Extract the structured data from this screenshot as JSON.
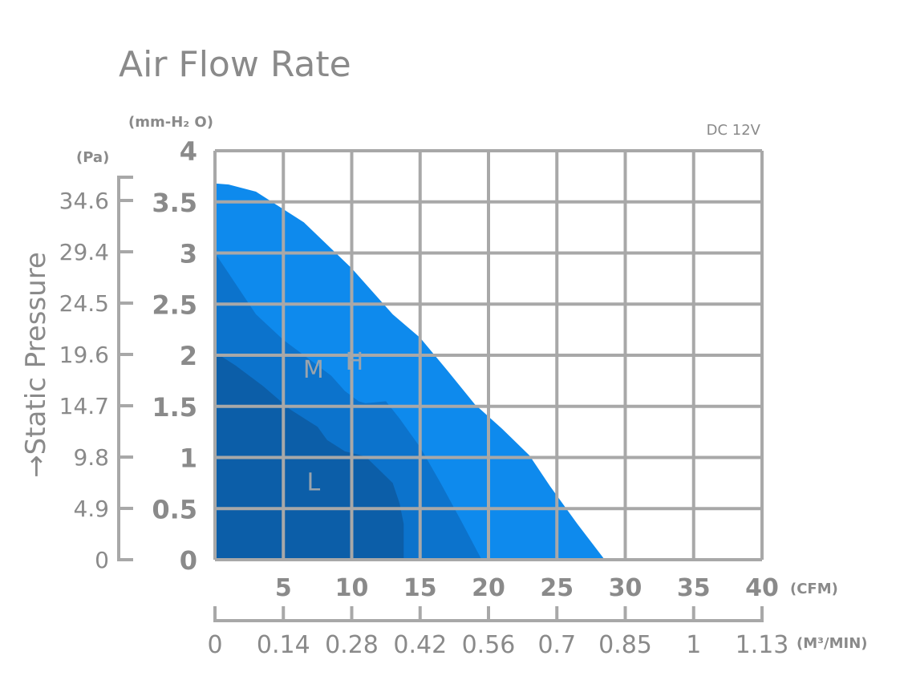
{
  "chart_data": {
    "type": "area",
    "title": "Air Flow Rate",
    "note": "DC 12V",
    "ylabel": "→Static Pressure",
    "y_unit_primary": "(mm-H₂ O)",
    "y_unit_secondary": "(Pa)",
    "x_unit_primary": "(CFM)",
    "x_unit_secondary": "(M³/MIN)",
    "xlim": [
      0,
      40
    ],
    "ylim": [
      0,
      4
    ],
    "grid": true,
    "x_ticks_cfm": [
      "5",
      "10",
      "15",
      "20",
      "25",
      "30",
      "35",
      "40"
    ],
    "x_ticks_m3min": [
      "0",
      "0.14",
      "0.28",
      "0.42",
      "0.56",
      "0.7",
      "0.85",
      "1",
      "1.13"
    ],
    "y_ticks_mmh2o": [
      "0",
      "0.5",
      "1",
      "1.5",
      "2",
      "2.5",
      "3",
      "3.5",
      "4"
    ],
    "y_ticks_pa": [
      "0",
      "4.9",
      "9.8",
      "14.7",
      "19.6",
      "24.5",
      "29.4",
      "34.6"
    ],
    "series": [
      {
        "name": "H",
        "color": "#0e8aed",
        "points": [
          [
            0,
            3.68
          ],
          [
            1,
            3.67
          ],
          [
            3,
            3.6
          ],
          [
            6.5,
            3.3
          ],
          [
            10,
            2.85
          ],
          [
            13,
            2.4
          ],
          [
            15,
            2.17
          ],
          [
            17,
            1.85
          ],
          [
            19,
            1.52
          ],
          [
            21,
            1.28
          ],
          [
            23,
            1.02
          ],
          [
            24.5,
            0.72
          ],
          [
            26.5,
            0.35
          ],
          [
            28.5,
            0
          ]
        ]
      },
      {
        "name": "M",
        "color": "#0c73cc",
        "points": [
          [
            0,
            3.0
          ],
          [
            1,
            2.8
          ],
          [
            3,
            2.4
          ],
          [
            5,
            2.15
          ],
          [
            7,
            1.95
          ],
          [
            8.5,
            1.8
          ],
          [
            9.5,
            1.65
          ],
          [
            10.5,
            1.55
          ],
          [
            11,
            1.53
          ],
          [
            12.5,
            1.55
          ],
          [
            13.5,
            1.38
          ],
          [
            15,
            1.1
          ],
          [
            16.5,
            0.75
          ],
          [
            18,
            0.38
          ],
          [
            19.5,
            0
          ]
        ]
      },
      {
        "name": "L",
        "color": "#0c5ea8",
        "points": [
          [
            0,
            2.03
          ],
          [
            1.5,
            1.9
          ],
          [
            3.5,
            1.7
          ],
          [
            5.5,
            1.47
          ],
          [
            7.5,
            1.3
          ],
          [
            8.2,
            1.17
          ],
          [
            9.5,
            1.06
          ],
          [
            11,
            1.01
          ],
          [
            12,
            0.88
          ],
          [
            13,
            0.75
          ],
          [
            13.5,
            0.55
          ],
          [
            13.8,
            0.35
          ],
          [
            13.8,
            0
          ]
        ]
      }
    ]
  }
}
